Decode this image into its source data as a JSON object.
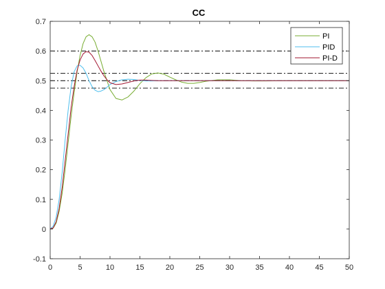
{
  "chart_data": {
    "type": "line",
    "title": "CC",
    "xlabel": "",
    "ylabel": "",
    "xlim": [
      0,
      50
    ],
    "ylim": [
      -0.1,
      0.7
    ],
    "x_ticks": [
      0,
      5,
      10,
      15,
      20,
      25,
      30,
      35,
      40,
      45,
      50
    ],
    "y_ticks": [
      -0.1,
      0,
      0.1,
      0.2,
      0.3,
      0.4,
      0.5,
      0.6,
      0.7
    ],
    "grid": false,
    "legend_position": "top-right",
    "series": [
      {
        "name": "PI",
        "color": "#77AC30",
        "x": [
          0,
          0.5,
          1,
          1.5,
          2,
          2.5,
          3,
          3.5,
          4,
          4.5,
          5,
          5.5,
          6,
          6.5,
          7,
          7.5,
          8,
          9,
          10,
          11,
          12,
          13,
          14,
          15,
          16,
          17,
          18,
          19,
          20,
          21,
          22,
          23,
          24,
          25,
          26,
          28,
          30,
          32,
          34,
          36,
          40,
          45,
          50
        ],
        "y": [
          0,
          0.003,
          0.02,
          0.06,
          0.12,
          0.2,
          0.29,
          0.38,
          0.46,
          0.53,
          0.585,
          0.625,
          0.648,
          0.655,
          0.648,
          0.63,
          0.6,
          0.53,
          0.47,
          0.44,
          0.435,
          0.445,
          0.465,
          0.49,
          0.51,
          0.523,
          0.526,
          0.522,
          0.512,
          0.503,
          0.495,
          0.491,
          0.491,
          0.494,
          0.498,
          0.503,
          0.503,
          0.5,
          0.499,
          0.499,
          0.5,
          0.5,
          0.5
        ]
      },
      {
        "name": "PID",
        "color": "#4DBEEE",
        "x": [
          0,
          0.5,
          1,
          1.5,
          2,
          2.5,
          3,
          3.5,
          4,
          4.5,
          5,
          5.5,
          6,
          6.5,
          7,
          7.5,
          8,
          8.5,
          9,
          9.5,
          10,
          11,
          12,
          13,
          14,
          15,
          16,
          17,
          18,
          20,
          25,
          30,
          40,
          50
        ],
        "y": [
          0,
          0.01,
          0.04,
          0.1,
          0.19,
          0.3,
          0.4,
          0.48,
          0.53,
          0.55,
          0.552,
          0.543,
          0.525,
          0.5,
          0.48,
          0.468,
          0.463,
          0.465,
          0.47,
          0.478,
          0.487,
          0.497,
          0.503,
          0.505,
          0.504,
          0.501,
          0.499,
          0.499,
          0.5,
          0.5,
          0.5,
          0.5,
          0.5,
          0.5
        ]
      },
      {
        "name": "PI-D",
        "color": "#A2142F",
        "x": [
          0,
          0.5,
          1,
          1.5,
          2,
          2.5,
          3,
          3.5,
          4,
          4.5,
          5,
          5.5,
          6,
          6.5,
          7,
          7.5,
          8,
          8.5,
          9,
          9.5,
          10,
          11,
          12,
          13,
          14,
          15,
          16,
          17,
          18,
          20,
          25,
          30,
          40,
          50
        ],
        "y": [
          0,
          0.004,
          0.025,
          0.07,
          0.14,
          0.23,
          0.32,
          0.41,
          0.48,
          0.535,
          0.57,
          0.59,
          0.598,
          0.596,
          0.585,
          0.568,
          0.55,
          0.532,
          0.516,
          0.503,
          0.493,
          0.487,
          0.489,
          0.494,
          0.499,
          0.502,
          0.502,
          0.501,
          0.5,
          0.5,
          0.5,
          0.5,
          0.5,
          0.5
        ]
      }
    ],
    "reference_lines": [
      {
        "y": 0.6,
        "color": "#000000",
        "style": "dash-dot"
      },
      {
        "y": 0.525,
        "color": "#000000",
        "style": "dash-dot"
      },
      {
        "y": 0.5,
        "color": "#000000",
        "style": "dash-dot"
      },
      {
        "y": 0.475,
        "color": "#000000",
        "style": "dash-dot"
      }
    ]
  }
}
